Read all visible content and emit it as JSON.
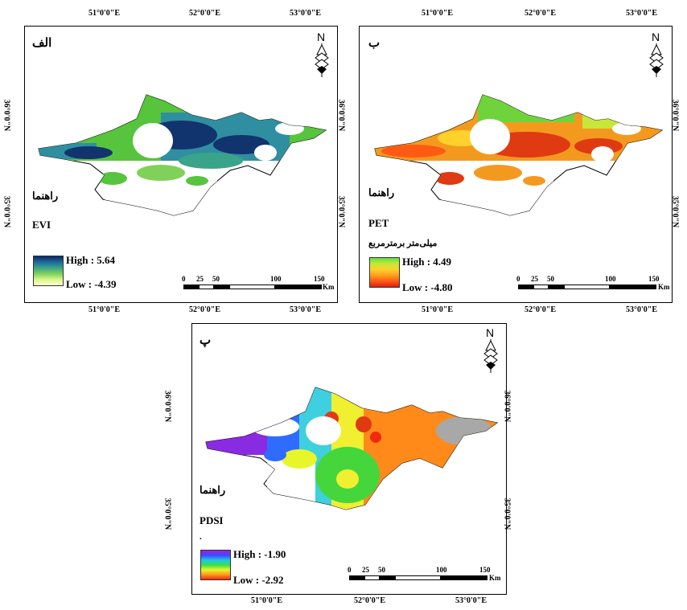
{
  "panels": [
    {
      "letter": "الف",
      "legend_title": "راهنما",
      "variable": "EVI",
      "unit": "",
      "high": "High : 5.64",
      "low": "Low : -4.39",
      "ramp": [
        "#0a2a66",
        "#1e6a9a",
        "#3aa48a",
        "#7fd15a",
        "#d8f58a",
        "#ffffd0"
      ],
      "top_ticks": [
        "51°0'0\"E",
        "52°0'0\"E",
        "53°0'0\"E"
      ],
      "bottom_ticks": [
        "51°0'0\"E",
        "52°0'0\"E",
        "53°0'0\"E"
      ],
      "side_ticks": [
        "36°0'0\"N",
        "35°0'0\"N"
      ]
    },
    {
      "letter": "ب",
      "legend_title": "راهنما",
      "variable": "PET",
      "unit": "میلی‌متر برمترمربع",
      "high": "High : 4.49",
      "low": "Low : -4.80",
      "ramp": [
        "#5fe03c",
        "#c6e63a",
        "#ffd12a",
        "#ffa022",
        "#ff5a14",
        "#e81a10"
      ],
      "top_ticks": [
        "51°0'0\"E",
        "52°0'0\"E",
        "53°0'0\"E"
      ],
      "bottom_ticks": [
        "51°0'0\"E",
        "52°0'0\"E",
        "53°0'0\"E"
      ],
      "side_ticks": [
        "36°0'0\"N",
        "35°0'0\"N"
      ]
    },
    {
      "letter": "پ",
      "legend_title": "راهنما",
      "variable": "PDSI",
      "unit": ".",
      "high": "High : -1.90",
      "low": "Low : -2.92",
      "ramp": [
        "#a11ee0",
        "#3a4bff",
        "#21c7e8",
        "#38e04a",
        "#e8f52a",
        "#ff9a1a",
        "#f02a10"
      ],
      "top_ticks": [],
      "bottom_ticks": [
        "51°0'0\"E",
        "52°0'0\"E",
        "53°0'0\"E"
      ],
      "side_ticks": [
        "36°0'0\"N",
        "35°0'0\"N"
      ]
    }
  ],
  "scale": {
    "labels": [
      "0",
      "25",
      "50",
      "100",
      "150"
    ],
    "unit": "Km"
  },
  "north": "N",
  "colors": {
    "evi_dark": "#12346e",
    "evi_mid": "#2f8fa0",
    "evi_green": "#56c43c",
    "pet_orange": "#f39a1e",
    "pet_red": "#e03a12",
    "pet_green": "#6fd43c",
    "pdsi_purple": "#8a2be2",
    "pdsi_blue": "#2f6bff",
    "pdsi_cyan": "#3fd0e0",
    "pdsi_green": "#45d63c",
    "pdsi_yellow": "#f0ef30",
    "pdsi_orange": "#ff8a1a",
    "pdsi_gray": "#a8a8a8"
  }
}
